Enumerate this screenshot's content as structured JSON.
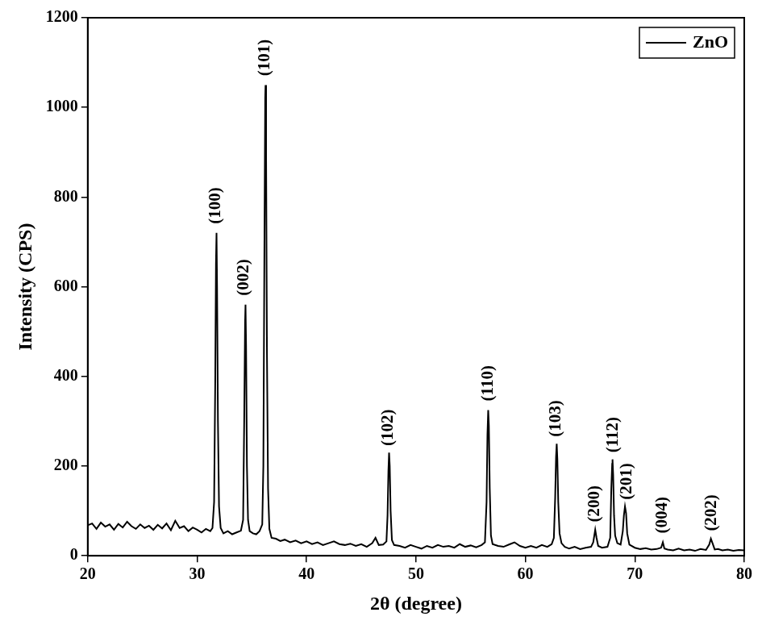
{
  "chart_data": {
    "type": "line",
    "x_label": "2θ (degree)",
    "y_label": "Intensity (CPS)",
    "xlim": [
      20,
      80
    ],
    "xticks": [
      20,
      30,
      40,
      50,
      60,
      70,
      80
    ],
    "ylim": [
      0,
      1200
    ],
    "yticks": [
      0,
      200,
      400,
      600,
      800,
      1000,
      1200
    ],
    "grid": false,
    "legend": "top-right",
    "x": [
      20,
      20.4,
      20.8,
      21.2,
      21.6,
      22,
      22.4,
      22.8,
      23.2,
      23.6,
      24,
      24.4,
      24.8,
      25.2,
      25.6,
      26,
      26.4,
      26.8,
      27.2,
      27.6,
      28,
      28.4,
      28.8,
      29.2,
      29.6,
      30,
      30.4,
      30.8,
      31.2,
      31.4,
      31.55,
      31.65,
      31.72,
      31.77,
      31.82,
      31.9,
      32.0,
      32.15,
      32.4,
      32.8,
      33.2,
      33.6,
      34.0,
      34.2,
      34.3,
      34.38,
      34.42,
      34.47,
      34.55,
      34.65,
      34.8,
      35.1,
      35.4,
      35.7,
      35.95,
      36.05,
      36.15,
      36.22,
      36.25,
      36.3,
      36.38,
      36.48,
      36.6,
      36.8,
      37.2,
      37.6,
      38,
      38.5,
      39,
      39.5,
      40,
      40.5,
      41,
      41.5,
      42,
      42.5,
      43,
      43.5,
      44,
      44.5,
      45,
      45.5,
      46,
      46.3,
      46.6,
      47,
      47.3,
      47.4,
      47.48,
      47.54,
      47.6,
      47.68,
      47.8,
      48,
      48.5,
      49,
      49.5,
      50,
      50.5,
      51,
      51.5,
      52,
      52.5,
      53,
      53.5,
      54,
      54.5,
      55,
      55.5,
      56,
      56.3,
      56.45,
      56.53,
      56.6,
      56.66,
      56.74,
      56.85,
      57.0,
      57.5,
      58,
      58.5,
      59,
      59.5,
      60,
      60.5,
      61,
      61.5,
      62,
      62.4,
      62.6,
      62.72,
      62.8,
      62.86,
      62.92,
      63.0,
      63.12,
      63.3,
      63.6,
      64,
      64.5,
      65,
      65.5,
      66,
      66.2,
      66.38,
      66.5,
      66.65,
      67,
      67.5,
      67.75,
      67.85,
      67.93,
      67.96,
      68.02,
      68.1,
      68.2,
      68.4,
      68.7,
      68.9,
      69.0,
      69.1,
      69.2,
      69.3,
      69.5,
      70,
      70.5,
      71,
      71.5,
      72,
      72.4,
      72.56,
      72.7,
      73,
      73.5,
      74,
      74.5,
      75,
      75.5,
      76,
      76.5,
      76.8,
      76.95,
      77.1,
      77.3,
      77.6,
      78,
      78.5,
      79,
      79.5,
      80
    ],
    "series": [
      {
        "name": "ZnO",
        "color": "#000000",
        "values": [
          68,
          72,
          60,
          74,
          65,
          70,
          58,
          71,
          63,
          76,
          66,
          60,
          70,
          62,
          67,
          58,
          69,
          61,
          72,
          57,
          78,
          62,
          66,
          55,
          63,
          58,
          52,
          60,
          55,
          62,
          120,
          380,
          650,
          720,
          600,
          300,
          110,
          62,
          50,
          55,
          48,
          52,
          56,
          80,
          300,
          520,
          560,
          470,
          200,
          80,
          55,
          50,
          48,
          55,
          70,
          200,
          700,
          1020,
          1050,
          900,
          450,
          150,
          60,
          40,
          38,
          33,
          36,
          30,
          34,
          28,
          32,
          26,
          30,
          24,
          28,
          32,
          26,
          24,
          27,
          22,
          26,
          20,
          28,
          40,
          24,
          25,
          32,
          90,
          190,
          230,
          200,
          100,
          35,
          24,
          22,
          18,
          24,
          20,
          16,
          22,
          18,
          24,
          20,
          22,
          18,
          26,
          20,
          23,
          19,
          24,
          30,
          120,
          270,
          325,
          290,
          150,
          45,
          26,
          22,
          20,
          25,
          30,
          22,
          18,
          22,
          18,
          24,
          20,
          26,
          40,
          130,
          220,
          250,
          215,
          120,
          50,
          28,
          20,
          16,
          20,
          15,
          18,
          20,
          30,
          58,
          40,
          22,
          18,
          20,
          40,
          150,
          205,
          215,
          180,
          90,
          45,
          28,
          25,
          55,
          90,
          110,
          95,
          50,
          25,
          18,
          15,
          17,
          14,
          15,
          18,
          30,
          16,
          14,
          12,
          16,
          12,
          14,
          11,
          15,
          13,
          25,
          38,
          28,
          14,
          15,
          12,
          14,
          11,
          13,
          12
        ]
      }
    ],
    "annotations": [
      {
        "text": "(100)",
        "x": 31.7,
        "y": 740
      },
      {
        "text": "(002)",
        "x": 34.3,
        "y": 580
      },
      {
        "text": "(101)",
        "x": 36.2,
        "y": 1070
      },
      {
        "text": "(102)",
        "x": 47.5,
        "y": 245
      },
      {
        "text": "(110)",
        "x": 56.6,
        "y": 345
      },
      {
        "text": "(103)",
        "x": 62.8,
        "y": 265
      },
      {
        "text": "(200)",
        "x": 66.3,
        "y": 75
      },
      {
        "text": "(112)",
        "x": 68.0,
        "y": 230
      },
      {
        "text": "(201)",
        "x": 69.3,
        "y": 125
      },
      {
        "text": "(004)",
        "x": 72.5,
        "y": 50
      },
      {
        "text": "(202)",
        "x": 77.0,
        "y": 55
      }
    ]
  }
}
